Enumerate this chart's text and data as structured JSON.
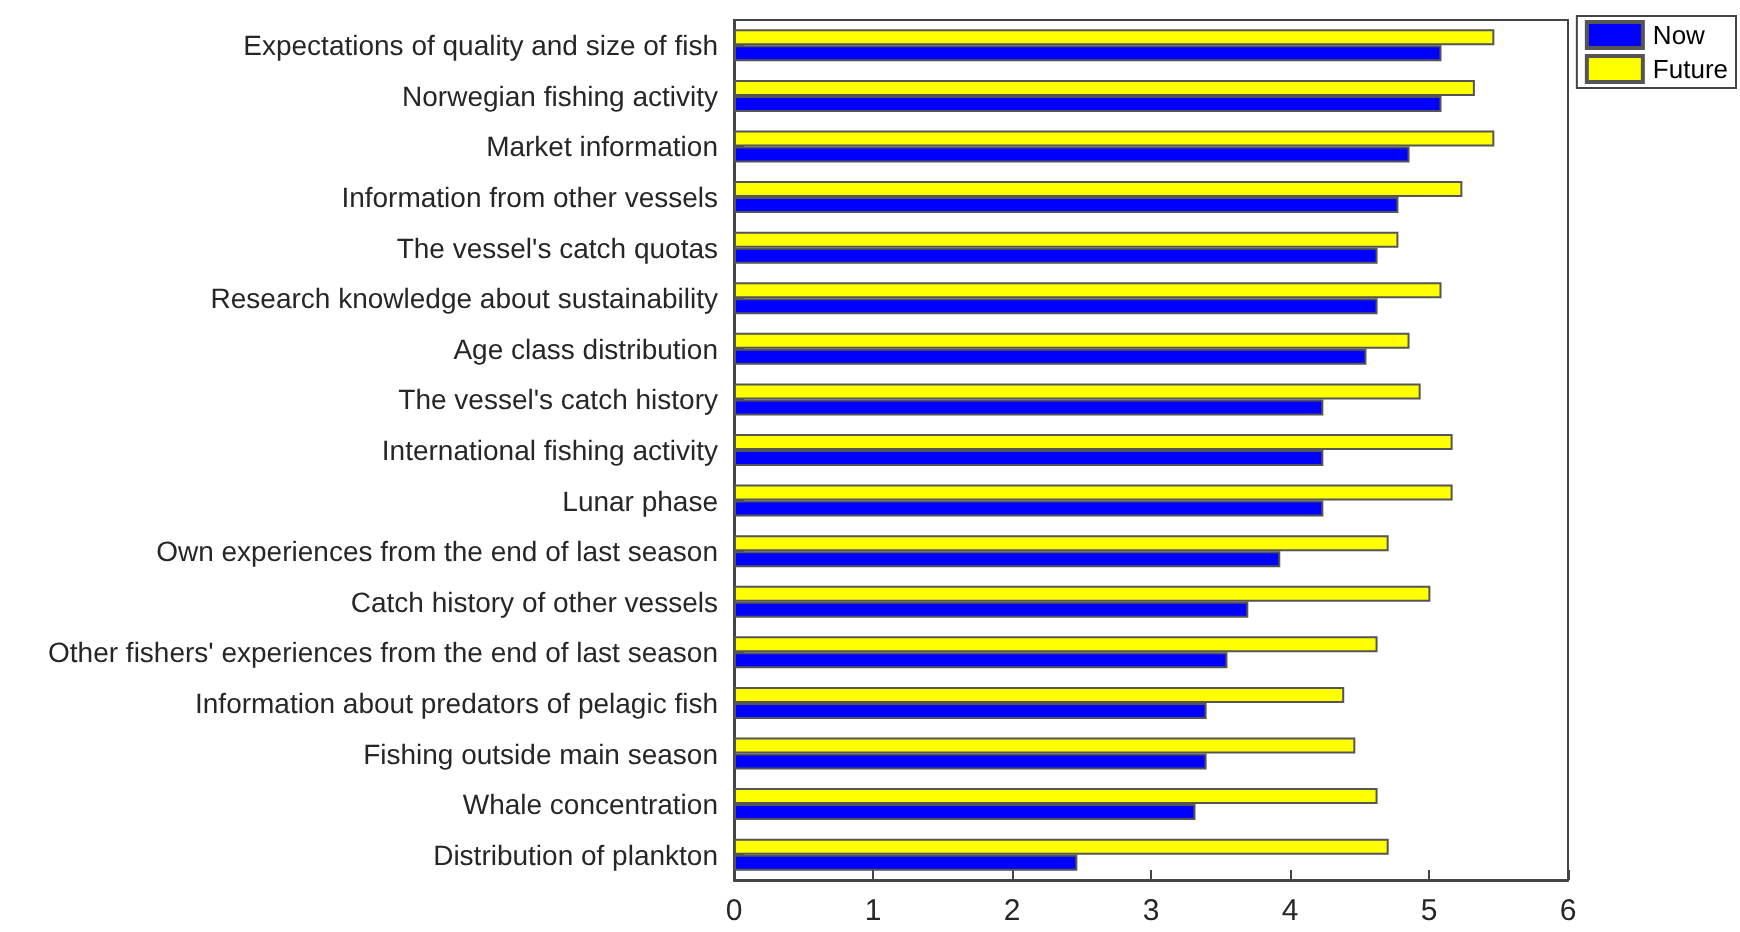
{
  "chart_data": {
    "type": "bar",
    "orientation": "horizontal",
    "categories": [
      "Expectations of quality and size of fish",
      "Norwegian fishing activity",
      "Market information",
      "Information from other vessels",
      "The vessel's catch quotas",
      "Research knowledge about sustainability",
      "Age class distribution",
      "The vessel's catch history",
      "International fishing activity",
      "Lunar phase",
      "Own experiences from the end of last season",
      "Catch history of other vessels",
      "Other fishers' experiences from the end of last season",
      "Information about predators of pelagic fish",
      "Fishing outside main season",
      "Whale concentration",
      "Distribution of plankton"
    ],
    "series": [
      {
        "name": "Now",
        "color": "#0000ff",
        "values": [
          5.09,
          5.09,
          4.86,
          4.78,
          4.63,
          4.63,
          4.55,
          4.24,
          4.24,
          4.24,
          3.93,
          3.7,
          3.55,
          3.4,
          3.4,
          3.32,
          2.47
        ]
      },
      {
        "name": "Future",
        "color": "#ffff00",
        "values": [
          5.47,
          5.33,
          5.47,
          5.24,
          4.78,
          5.09,
          4.86,
          4.94,
          5.17,
          5.17,
          4.71,
          5.01,
          4.63,
          4.39,
          4.47,
          4.63,
          4.71
        ]
      }
    ],
    "xlim": [
      0,
      6
    ],
    "xticks": [
      0,
      1,
      2,
      3,
      4,
      5,
      6
    ],
    "grid": false,
    "legend": "top right"
  }
}
